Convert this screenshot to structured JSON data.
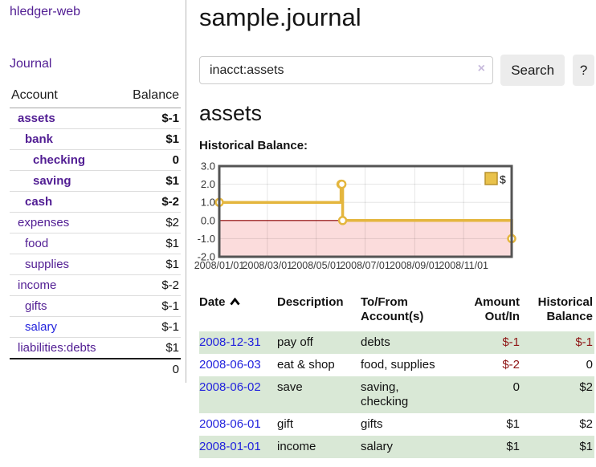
{
  "app": {
    "title": "hledger-web"
  },
  "sidebar": {
    "journal_link": "Journal",
    "accounts_header": {
      "account": "Account",
      "balance": "Balance"
    },
    "accounts": [
      {
        "label": "assets",
        "balance": "$-1"
      },
      {
        "label": "bank",
        "balance": "$1"
      },
      {
        "label": "checking",
        "balance": "0"
      },
      {
        "label": "saving",
        "balance": "$1"
      },
      {
        "label": "cash",
        "balance": "$-2"
      },
      {
        "label": "expenses",
        "balance": "$2"
      },
      {
        "label": "food",
        "balance": "$1"
      },
      {
        "label": "supplies",
        "balance": "$1"
      },
      {
        "label": "income",
        "balance": "$-2"
      },
      {
        "label": "gifts",
        "balance": "$-1"
      },
      {
        "label": "salary",
        "balance": "$-1"
      },
      {
        "label": "liabilities:debts",
        "balance": "$1"
      }
    ],
    "total": "0"
  },
  "header": {
    "title": "sample.journal"
  },
  "search": {
    "value": "inacct:assets",
    "clear": "×",
    "button_label": "Search",
    "help_label": "?"
  },
  "account_page": {
    "title": "assets",
    "chart_label": "Historical Balance:"
  },
  "chart_data": {
    "type": "line",
    "step": true,
    "title": "Historical Balance:",
    "series": [
      {
        "name": "$",
        "points": [
          [
            "2008-01-01",
            1
          ],
          [
            "2008-06-01",
            2
          ],
          [
            "2008-06-02",
            2
          ],
          [
            "2008-06-03",
            0
          ],
          [
            "2008-12-31",
            -1
          ]
        ]
      }
    ],
    "xlim": [
      "2008-01-01",
      "2008-12-31"
    ],
    "ylim": [
      -2,
      3
    ],
    "x_ticks": [
      "2008/01/01",
      "2008/03/01",
      "2008/05/01",
      "2008/07/01",
      "2008/09/01",
      "2008/11/01"
    ],
    "y_ticks": [
      3.0,
      2.0,
      1.0,
      0.0,
      -1.0,
      -2.0
    ],
    "legend_position": "top-right",
    "grid": true,
    "colors": {
      "line": "#e4b63e",
      "marker_fill": "#ffffff",
      "negative_region": "#fbdcdc",
      "zero_line": "#8b0000",
      "grid": "rgba(0,0,0,0.10)",
      "border": "#545454",
      "legend_fill": "#e9c24b",
      "legend_stroke": "#b7922e"
    }
  },
  "register": {
    "headers": {
      "date": "Date",
      "description": "Description",
      "accounts": "To/From\nAccount(s)",
      "amount": "Amount\nOut/In",
      "balance": "Historical\nBalance"
    },
    "rows": [
      {
        "date": "2008-12-31",
        "description": "pay off",
        "accounts": "debts",
        "amount": "$-1",
        "balance": "$-1"
      },
      {
        "date": "2008-06-03",
        "description": "eat & shop",
        "accounts": "food, supplies",
        "amount": "$-2",
        "balance": "0"
      },
      {
        "date": "2008-06-02",
        "description": "save",
        "accounts": "saving,\nchecking",
        "amount": "0",
        "balance": "$2"
      },
      {
        "date": "2008-06-01",
        "description": "gift",
        "accounts": "gifts",
        "amount": "$1",
        "balance": "$2"
      },
      {
        "date": "2008-01-01",
        "description": "income",
        "accounts": "salary",
        "amount": "$1",
        "balance": "$1"
      }
    ]
  }
}
